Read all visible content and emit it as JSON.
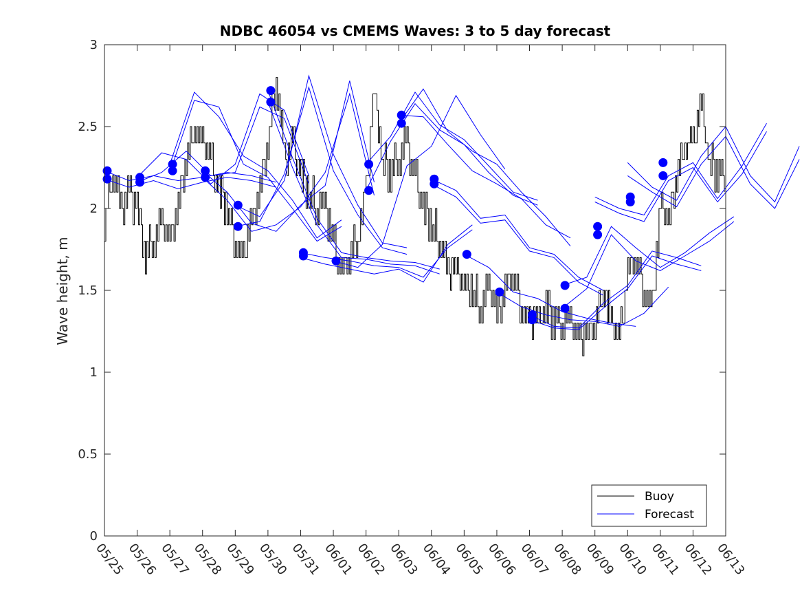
{
  "chart_data": {
    "type": "line",
    "title": "NDBC 46054 vs CMEMS Waves: 3 to 5 day forecast",
    "xlabel": "",
    "ylabel": "Wave height, m",
    "xlim": [
      "2019-05-25",
      "2019-06-13"
    ],
    "ylim": [
      0,
      3
    ],
    "x_tick_labels": [
      "05/25",
      "05/26",
      "05/27",
      "05/28",
      "05/29",
      "05/30",
      "05/31",
      "06/01",
      "06/02",
      "06/03",
      "06/04",
      "06/05",
      "06/06",
      "06/07",
      "06/08",
      "06/09",
      "06/10",
      "06/11",
      "06/12",
      "06/13"
    ],
    "y_ticks": [
      0,
      0.5,
      1,
      1.5,
      2,
      2.5,
      3
    ],
    "y_tick_labels": [
      "0",
      "0.5",
      "1",
      "1.5",
      "2",
      "2.5",
      "3"
    ],
    "grid": false,
    "legend_position": "bottom-right",
    "series": [
      {
        "name": "Buoy",
        "color": "#000000",
        "x": [
          "05/25 00:00",
          "05/25 06:00",
          "05/25 12:00",
          "05/25 18:00",
          "05/26 00:00",
          "05/26 06:00",
          "05/26 12:00",
          "05/26 18:00",
          "05/27 00:00",
          "05/27 06:00",
          "05/27 12:00",
          "05/27 18:00",
          "05/28 00:00",
          "05/28 06:00",
          "05/28 12:00",
          "05/28 18:00",
          "05/29 00:00",
          "05/29 06:00",
          "05/29 12:00",
          "05/29 18:00",
          "05/30 00:00",
          "05/30 06:00",
          "05/30 12:00",
          "05/30 18:00",
          "05/31 00:00",
          "05/31 06:00",
          "05/31 12:00",
          "05/31 18:00",
          "06/01 00:00",
          "06/01 06:00",
          "06/01 12:00",
          "06/01 18:00",
          "06/02 00:00",
          "06/02 06:00",
          "06/02 12:00",
          "06/02 18:00",
          "06/03 00:00",
          "06/03 06:00",
          "06/03 12:00",
          "06/03 18:00",
          "06/04 00:00",
          "06/04 06:00",
          "06/04 12:00",
          "06/04 18:00",
          "06/05 00:00",
          "06/05 06:00",
          "06/05 12:00",
          "06/05 18:00",
          "06/06 00:00",
          "06/06 06:00",
          "06/06 12:00",
          "06/06 18:00",
          "06/07 00:00",
          "06/07 06:00",
          "06/07 12:00",
          "06/07 18:00",
          "06/08 00:00",
          "06/08 06:00",
          "06/08 12:00",
          "06/08 18:00",
          "06/09 00:00",
          "06/09 06:00",
          "06/09 12:00",
          "06/09 18:00",
          "06/10 00:00",
          "06/10 06:00",
          "06/10 12:00",
          "06/10 18:00",
          "06/11 00:00",
          "06/11 06:00",
          "06/11 12:00",
          "06/11 18:00",
          "06/12 00:00",
          "06/12 06:00",
          "06/12 12:00",
          "06/12 18:00"
        ],
        "y": [
          1.9,
          2.2,
          2.0,
          2.1,
          2.0,
          1.7,
          1.8,
          1.9,
          1.8,
          2.0,
          2.3,
          2.5,
          2.4,
          2.3,
          2.1,
          2.0,
          1.8,
          1.7,
          1.9,
          2.1,
          2.4,
          2.8,
          2.3,
          2.4,
          2.2,
          2.1,
          2.0,
          2.0,
          1.8,
          1.6,
          1.7,
          1.8,
          2.1,
          2.7,
          2.3,
          2.2,
          2.3,
          2.4,
          2.2,
          2.0,
          1.9,
          1.8,
          1.6,
          1.6,
          1.5,
          1.5,
          1.4,
          1.5,
          1.4,
          1.5,
          1.6,
          1.4,
          1.3,
          1.3,
          1.4,
          1.3,
          1.3,
          1.3,
          1.2,
          1.2,
          1.3,
          1.5,
          1.3,
          1.2,
          1.6,
          1.7,
          1.5,
          1.4,
          2.0,
          1.9,
          2.2,
          2.4,
          2.4,
          2.6,
          2.3,
          2.2
        ]
      },
      {
        "name": "Forecast",
        "color": "#0000ff",
        "runs": [
          {
            "start": "05/25 00:00",
            "y": [
              2.23,
              2.17,
              2.2,
              2.17,
              2.19,
              2.22,
              2.2,
              2.16
            ]
          },
          {
            "start": "05/25 00:00",
            "y": [
              2.18,
              2.13,
              2.17,
              2.12,
              2.16,
              2.19,
              2.17,
              2.13
            ]
          },
          {
            "start": "05/26 00:00",
            "y": [
              2.19,
              2.34,
              2.3,
              2.15,
              2.27,
              2.7,
              2.6,
              2.2
            ]
          },
          {
            "start": "05/26 00:00",
            "y": [
              2.16,
              2.22,
              2.35,
              2.2,
              2.22,
              2.62,
              2.55,
              2.15
            ]
          },
          {
            "start": "05/27 00:00",
            "y": [
              2.27,
              2.71,
              2.56,
              2.32,
              2.23,
              2.05,
              1.82,
              1.93
            ]
          },
          {
            "start": "05/27 00:00",
            "y": [
              2.22,
              2.66,
              2.62,
              2.27,
              2.19,
              2.0,
              1.8,
              1.89
            ]
          },
          {
            "start": "05/28 00:00",
            "y": [
              2.23,
              2.1,
              1.91,
              1.86,
              2.02,
              2.14,
              2.78,
              2.16
            ]
          },
          {
            "start": "05/28 00:00",
            "y": [
              2.19,
              2.05,
              1.86,
              1.9,
              2.01,
              2.22,
              2.7,
              2.08
            ]
          },
          {
            "start": "05/29 00:00",
            "y": [
              2.02,
              1.95,
              2.17,
              2.81,
              2.33,
              2.02,
              1.79,
              1.76
            ]
          },
          {
            "start": "05/29 00:00",
            "y": [
              1.89,
              1.92,
              2.21,
              2.74,
              2.23,
              1.96,
              1.76,
              1.72
            ]
          },
          {
            "start": "05/30 00:00",
            "y": [
              2.72,
              2.31,
              1.94,
              1.73,
              1.7,
              1.68,
              1.67,
              1.63
            ]
          },
          {
            "start": "05/30 00:00",
            "y": [
              2.65,
              2.25,
              1.9,
              1.7,
              1.69,
              1.66,
              1.65,
              1.6
            ]
          },
          {
            "start": "05/31 00:00",
            "y": [
              1.73,
              1.7,
              1.68,
              1.65,
              1.64,
              1.58,
              1.76,
              1.87
            ]
          },
          {
            "start": "05/31 00:00",
            "y": [
              1.7,
              1.66,
              1.63,
              1.6,
              1.63,
              1.55,
              1.78,
              1.9
            ]
          },
          {
            "start": "06/01 00:00",
            "y": [
              1.68,
              1.64,
              1.78,
              2.26,
              2.38,
              2.69,
              2.45,
              2.24
            ]
          },
          {
            "start": "06/02 00:00",
            "y": [
              2.27,
              2.44,
              2.71,
              2.51,
              2.42,
              2.26,
              2.1,
              2.05
            ]
          },
          {
            "start": "06/02 00:00",
            "y": [
              2.11,
              2.41,
              2.64,
              2.48,
              2.39,
              2.22,
              2.08,
              2.02
            ]
          },
          {
            "start": "06/03 00:00",
            "y": [
              2.57,
              2.56,
              2.39,
              2.23,
              2.15,
              2.06,
              1.9,
              1.82
            ]
          },
          {
            "start": "06/03 00:00",
            "y": [
              2.52,
              2.73,
              2.47,
              2.35,
              2.27,
              2.1,
              1.95,
              1.77
            ]
          },
          {
            "start": "06/04 00:00",
            "y": [
              2.18,
              2.11,
              1.94,
              1.96,
              1.76,
              1.72,
              1.58,
              1.5
            ]
          },
          {
            "start": "06/04 00:00",
            "y": [
              2.15,
              2.07,
              1.91,
              1.93,
              1.74,
              1.7,
              1.55,
              1.47
            ]
          },
          {
            "start": "06/05 00:00",
            "y": [
              1.72,
              1.64,
              1.49,
              1.45,
              1.37,
              1.33,
              1.3,
              1.28
            ]
          },
          {
            "start": "06/06 00:00",
            "y": [
              1.49,
              1.4,
              1.35,
              1.32,
              1.31,
              1.28,
              1.36,
              1.52
            ]
          },
          {
            "start": "06/07 00:00",
            "y": [
              1.35,
              1.28,
              1.27,
              1.42,
              1.53,
              1.74,
              1.7,
              1.65
            ]
          },
          {
            "start": "06/07 00:00",
            "y": [
              1.32,
              1.27,
              1.26,
              1.39,
              1.51,
              1.71,
              1.66,
              1.62
            ]
          },
          {
            "start": "06/08 00:00",
            "y": [
              1.53,
              1.58,
              1.89,
              1.76,
              1.64,
              1.73,
              1.85,
              1.95
            ]
          },
          {
            "start": "06/08 00:00",
            "y": [
              1.39,
              1.51,
              1.84,
              1.68,
              1.62,
              1.71,
              1.8,
              1.92
            ]
          },
          {
            "start": "06/09 00:00",
            "y": [
              2.07,
              2.0,
              1.96,
              2.2,
              2.28,
              2.06,
              2.26,
              2.52
            ]
          },
          {
            "start": "06/09 00:00",
            "y": [
              2.04,
              1.97,
              1.92,
              2.17,
              2.25,
              2.04,
              2.21,
              2.47
            ]
          },
          {
            "start": "06/10 00:00",
            "y": [
              2.28,
              2.13,
              2.05,
              2.32,
              2.5,
              2.2,
              2.04,
              2.38
            ]
          },
          {
            "start": "06/10 00:00",
            "y": [
              2.2,
              2.1,
              2.01,
              2.27,
              2.44,
              2.15,
              2.0,
              2.3
            ]
          }
        ],
        "markers": [
          {
            "x": "05/25 02:00",
            "y": 2.23
          },
          {
            "x": "05/25 02:00",
            "y": 2.18
          },
          {
            "x": "05/26 02:00",
            "y": 2.19
          },
          {
            "x": "05/26 02:00",
            "y": 2.16
          },
          {
            "x": "05/27 02:00",
            "y": 2.27
          },
          {
            "x": "05/27 02:00",
            "y": 2.23
          },
          {
            "x": "05/28 02:00",
            "y": 2.23
          },
          {
            "x": "05/28 02:00",
            "y": 2.19
          },
          {
            "x": "05/29 02:00",
            "y": 2.02
          },
          {
            "x": "05/29 02:00",
            "y": 1.89
          },
          {
            "x": "05/30 02:00",
            "y": 2.72
          },
          {
            "x": "05/30 02:00",
            "y": 2.65
          },
          {
            "x": "05/31 02:00",
            "y": 1.73
          },
          {
            "x": "05/31 02:00",
            "y": 1.71
          },
          {
            "x": "06/01 02:00",
            "y": 1.68
          },
          {
            "x": "06/02 02:00",
            "y": 2.27
          },
          {
            "x": "06/02 02:00",
            "y": 2.11
          },
          {
            "x": "06/03 02:00",
            "y": 2.57
          },
          {
            "x": "06/03 02:00",
            "y": 2.52
          },
          {
            "x": "06/04 02:00",
            "y": 2.18
          },
          {
            "x": "06/04 02:00",
            "y": 2.15
          },
          {
            "x": "06/05 02:00",
            "y": 1.72
          },
          {
            "x": "06/06 02:00",
            "y": 1.49
          },
          {
            "x": "06/07 02:00",
            "y": 1.35
          },
          {
            "x": "06/07 02:00",
            "y": 1.32
          },
          {
            "x": "06/08 02:00",
            "y": 1.53
          },
          {
            "x": "06/08 02:00",
            "y": 1.39
          },
          {
            "x": "06/09 02:00",
            "y": 1.89
          },
          {
            "x": "06/09 02:00",
            "y": 1.84
          },
          {
            "x": "06/10 02:00",
            "y": 2.07
          },
          {
            "x": "06/10 02:00",
            "y": 2.04
          },
          {
            "x": "06/11 02:00",
            "y": 2.28
          },
          {
            "x": "06/11 02:00",
            "y": 2.2
          }
        ]
      }
    ]
  },
  "legend": {
    "items": [
      {
        "label": "Buoy",
        "color": "#000000"
      },
      {
        "label": "Forecast",
        "color": "#0000ff"
      }
    ]
  }
}
